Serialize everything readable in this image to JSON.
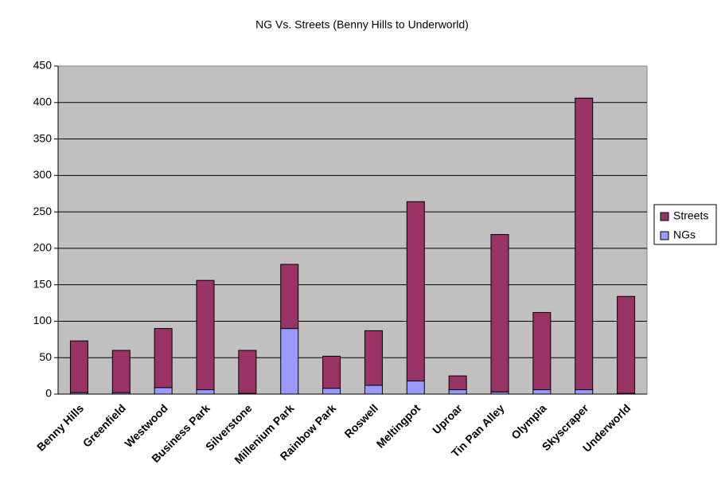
{
  "chart_data": {
    "type": "stacked_bar",
    "title": "NG Vs. Streets (Benny Hills to Underworld)",
    "categories": [
      "Benny Hills",
      "Greenfield",
      "Westwood",
      "Business Park",
      "Silverstone",
      "Millenium Park",
      "Rainbow Park",
      "Roswell",
      "Meltingpot",
      "Uproar",
      "Tin Pan Alley",
      "Olympia",
      "Skyscraper",
      "Underworld"
    ],
    "series": [
      {
        "name": "NGs",
        "color": "#9999ff",
        "values": [
          2,
          2,
          9,
          6,
          1,
          90,
          8,
          12,
          18,
          6,
          3,
          6,
          6,
          1
        ]
      },
      {
        "name": "Streets",
        "color": "#993366",
        "values": [
          71,
          58,
          81,
          150,
          59,
          88,
          44,
          75,
          246,
          19,
          216,
          106,
          400,
          133
        ]
      }
    ],
    "ylim": [
      0,
      450
    ],
    "yticks": [
      0,
      50,
      100,
      150,
      200,
      250,
      300,
      350,
      400,
      450
    ],
    "grid": true,
    "legend": "right"
  }
}
